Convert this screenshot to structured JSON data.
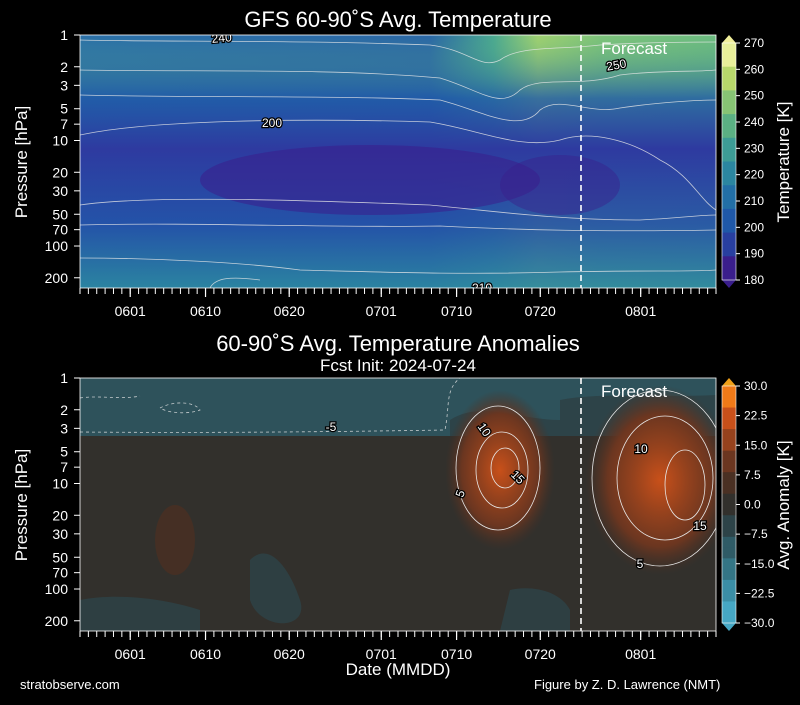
{
  "chart_data": [
    {
      "type": "heatmap",
      "title": "GFS 60-90˚S Avg. Temperature",
      "subtitle": "",
      "xlabel": "",
      "ylabel": "Pressure [hPa]",
      "y_scale": "log",
      "y_reversed": true,
      "yticks": [
        1,
        2,
        3,
        5,
        7,
        10,
        20,
        30,
        50,
        70,
        100,
        200
      ],
      "xticks": [
        "0601",
        "0610",
        "0620",
        "0701",
        "0710",
        "0720",
        "0801"
      ],
      "annotation": "Forecast",
      "forecast_start": "0724",
      "colorbar": {
        "label": "Temperature [K]",
        "ticks": [
          270,
          260,
          250,
          240,
          230,
          220,
          210,
          200,
          190,
          180
        ],
        "range": [
          180,
          270
        ],
        "colors": [
          "#3a1e8c",
          "#283fa0",
          "#1f58a8",
          "#226fa6",
          "#2b86a0",
          "#3d9c95",
          "#5bb083",
          "#87c474",
          "#b8d86b",
          "#e8ef9a"
        ]
      },
      "contour_labels": [
        "240",
        "200",
        "250",
        "210"
      ]
    },
    {
      "type": "heatmap",
      "title": "60-90˚S Avg. Temperature Anomalies",
      "subtitle": "Fcst Init: 2024-07-24",
      "xlabel": "Date (MMDD)",
      "ylabel": "Pressure [hPa]",
      "y_scale": "log",
      "y_reversed": true,
      "yticks": [
        1,
        2,
        3,
        5,
        7,
        10,
        20,
        30,
        50,
        70,
        100,
        200
      ],
      "xticks": [
        "0601",
        "0610",
        "0620",
        "0701",
        "0710",
        "0720",
        "0801"
      ],
      "annotation": "Forecast",
      "forecast_start": "0724",
      "colorbar": {
        "label": "Avg. Anomaly [K]",
        "ticks": [
          "30.0",
          "22.5",
          "15.0",
          "7.5",
          "0.0",
          "−7.5",
          "−15.0",
          "−22.5",
          "−30.0"
        ],
        "range": [
          -30,
          30
        ],
        "colors": [
          "#46a7c4",
          "#3b8ea6",
          "#347585",
          "#2f5b66",
          "#2d4348",
          "#32302c",
          "#4a3023",
          "#6b3620",
          "#96421d",
          "#c8501a",
          "#f07a18"
        ]
      },
      "contour_labels": [
        "-5",
        "10",
        "15",
        "5",
        "10",
        "15",
        "5"
      ]
    }
  ],
  "footer": {
    "left": "stratobserve.com",
    "right": "Figure by Z. D. Lawrence (NMT)"
  }
}
